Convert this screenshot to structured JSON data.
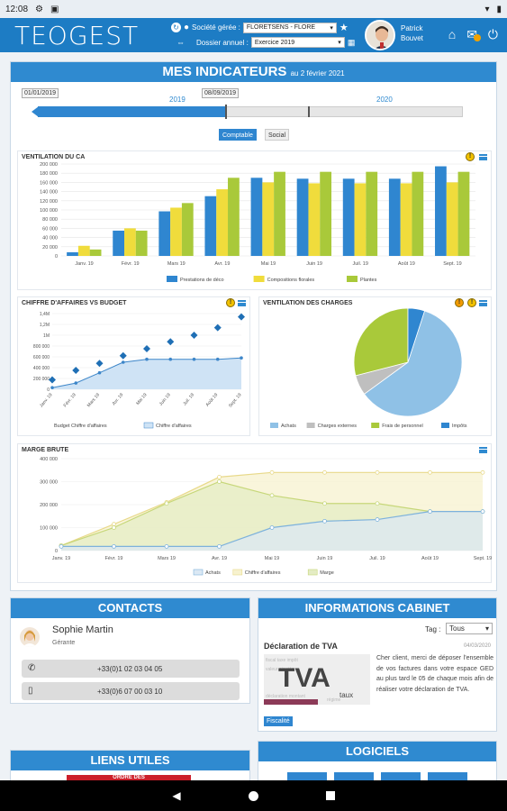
{
  "status": {
    "time": "12:08"
  },
  "header": {
    "logo": "TEOGEST",
    "societe_label": "Société gérée :",
    "societe_value": "FLORETSENS - FLORE",
    "dossier_label": "Dossier annuel :",
    "dossier_value": "Exercice 2019",
    "user_first": "Patrick",
    "user_last": "Bouvet"
  },
  "indicators": {
    "title": "MES INDICATEURS",
    "date": "au 2 février 2021",
    "start_date": "01/01/2019",
    "cut_date": "08/09/2019",
    "year1": "2019",
    "year2": "2020",
    "tab_comptable": "Comptable",
    "tab_social": "Social"
  },
  "colors": {
    "blue": "#2f86d0",
    "yellow": "#f0dc3c",
    "green": "#a9c93a",
    "lightblue": "#8fc1e6",
    "gray": "#bfbfbf",
    "darkblue": "#1f6fb5"
  },
  "chart_data": [
    {
      "type": "bar",
      "title": "VENTILATION DU CA",
      "categories": [
        "Janv. 19",
        "Févr. 19",
        "Mars 19",
        "Avr. 19",
        "Mai 19",
        "Juin 19",
        "Juil. 19",
        "Août 19",
        "Sept. 19"
      ],
      "series": [
        {
          "name": "Prestations de déco",
          "values": [
            8000,
            55000,
            97000,
            130000,
            170000,
            168000,
            168000,
            168000,
            195000
          ]
        },
        {
          "name": "Compositions florales",
          "values": [
            22000,
            60000,
            105000,
            145000,
            160000,
            158000,
            158000,
            158000,
            160000
          ]
        },
        {
          "name": "Plantes",
          "values": [
            14000,
            55000,
            115000,
            170000,
            183000,
            183000,
            183000,
            183000,
            183000
          ]
        }
      ],
      "ylim": [
        0,
        200000
      ],
      "yticks": [
        "0",
        "20 000",
        "40 000",
        "60 000",
        "80 000",
        "100 000",
        "120 000",
        "140 000",
        "160 000",
        "180 000",
        "200 000"
      ]
    },
    {
      "type": "line",
      "title": "CHIFFRE D'AFFAIRES VS BUDGET",
      "categories": [
        "Janv. 19",
        "Févr. 19",
        "Mars 19",
        "Avr. 19",
        "Mai 19",
        "Juin 19",
        "Juil. 19",
        "Août 19",
        "Sept. 19"
      ],
      "series": [
        {
          "name": "Budget Chiffre d'affaires",
          "values": [
            175000,
            350000,
            480000,
            620000,
            750000,
            880000,
            1000000,
            1140000,
            1340000
          ]
        },
        {
          "name": "Chiffre d'affaires",
          "values": [
            30000,
            115000,
            305000,
            500000,
            555000,
            555000,
            555000,
            555000,
            580000
          ]
        }
      ],
      "ylim": [
        0,
        1400000
      ],
      "yticks": [
        "0",
        "200 000",
        "400 000",
        "600 000",
        "800 000",
        "1M",
        "1,2M",
        "1,4M"
      ]
    },
    {
      "type": "pie",
      "title": "VENTILATION DES CHARGES",
      "series": [
        {
          "name": "Achats",
          "value": 60
        },
        {
          "name": "Charges externes",
          "value": 6
        },
        {
          "name": "Frais de personnel",
          "value": 29
        },
        {
          "name": "Impôts",
          "value": 5
        }
      ]
    },
    {
      "type": "area",
      "title": "MARGE BRUTE",
      "categories": [
        "Janv. 19",
        "Févr. 19",
        "Mars 19",
        "Avr. 19",
        "Mai 19",
        "Juin 19",
        "Juil. 19",
        "Août 19",
        "Sept. 19"
      ],
      "series": [
        {
          "name": "Achats",
          "values": [
            18000,
            18000,
            18000,
            18000,
            100000,
            128000,
            135000,
            170000,
            170000
          ]
        },
        {
          "name": "Chiffre d'affaires",
          "values": [
            22000,
            115000,
            210000,
            320000,
            340000,
            340000,
            340000,
            340000,
            340000
          ]
        },
        {
          "name": "Marge",
          "values": [
            22000,
            100000,
            205000,
            300000,
            240000,
            205000,
            205000,
            170000,
            170000
          ]
        }
      ],
      "ylim": [
        0,
        400000
      ],
      "yticks": [
        "0",
        "100 000",
        "200 000",
        "300 000",
        "400 000"
      ]
    }
  ],
  "contacts": {
    "title": "CONTACTS",
    "name": "Sophie Martin",
    "role": "Gérante",
    "phone": "+33(0)1 02 03 04 05",
    "mobile": "+33(0)6 07 00 03 10"
  },
  "cabinet": {
    "title": "INFORMATIONS CABINET",
    "tag_label": "Tag :",
    "tag_value": "Tous",
    "news_title": "Déclaration de TVA",
    "news_date": "04/03/2020",
    "news_text": "Cher client, merci de déposer l'ensemble de vos factures dans votre espace GED au plus tard le 05 de chaque mois afin de réaliser votre déclaration de TVA.",
    "news_tag": "Fiscalité",
    "tva_image_text": "TVA",
    "tva_image_sub": "taux"
  },
  "liens": {
    "title": "LIENS UTILES",
    "banner": "ORDRE DES"
  },
  "logiciels": {
    "title": "LOGICIELS"
  }
}
